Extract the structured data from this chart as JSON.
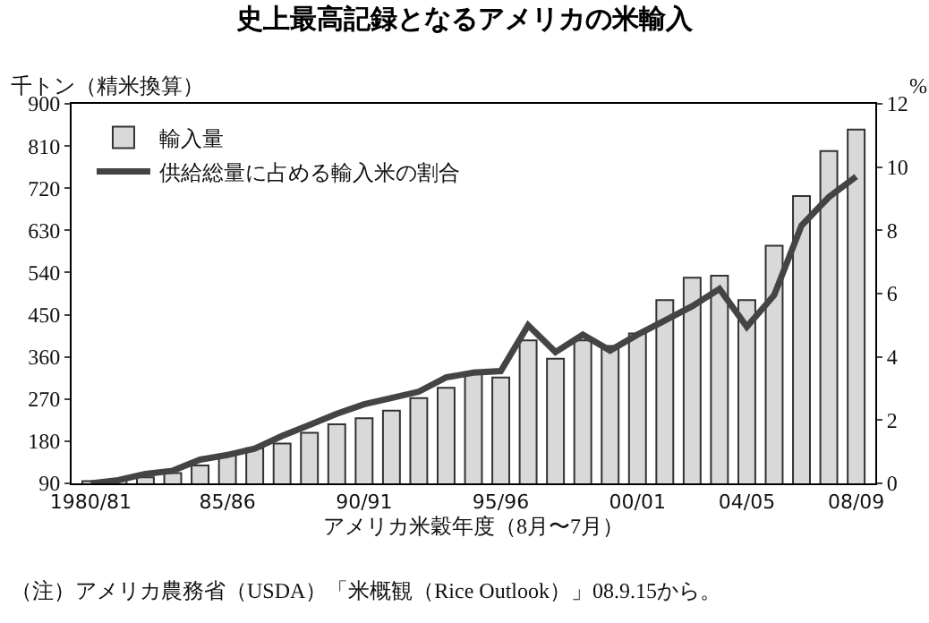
{
  "chart_data": {
    "type": "bar",
    "title": "史上最高記録となるアメリカの米輸入",
    "xlabel": "アメリカ米穀年度（8月〜7月）",
    "ylabel": "千トン（精米換算）",
    "y2label": "%",
    "categories": [
      "1980/81",
      null,
      null,
      null,
      null,
      "85/86",
      null,
      null,
      null,
      null,
      "90/91",
      null,
      null,
      null,
      null,
      "95/96",
      null,
      null,
      null,
      null,
      "00/01",
      null,
      null,
      null,
      "04/05",
      null,
      null,
      null,
      "08/09"
    ],
    "series": [
      {
        "name": "輸入量",
        "color": "#d9d9d9",
        "values": [
          95,
          97,
          103,
          112,
          128,
          149,
          165,
          175,
          198,
          216,
          229,
          245,
          272,
          294,
          323,
          316,
          395,
          356,
          395,
          383,
          410,
          481,
          529,
          533,
          481,
          597,
          703,
          799,
          845
        ]
      },
      {
        "name": "供給総量に占める輸入米の割合",
        "type": "line",
        "axis": "y2",
        "color": "#444444",
        "values": [
          0.0,
          0.1,
          0.3,
          0.4,
          0.75,
          0.9,
          1.1,
          1.5,
          1.85,
          2.2,
          2.5,
          2.7,
          2.9,
          3.35,
          3.5,
          3.55,
          5.0,
          4.15,
          4.7,
          4.2,
          4.7,
          5.15,
          5.6,
          6.15,
          4.95,
          5.95,
          8.15,
          9.05,
          9.7
        ]
      }
    ],
    "ylim": [
      90,
      900
    ],
    "yticks": [
      90,
      180,
      270,
      360,
      450,
      540,
      630,
      720,
      810,
      900
    ],
    "y2lim": [
      0,
      12
    ],
    "y2ticks": [
      0,
      2,
      4,
      6,
      8,
      10,
      12
    ],
    "legend": "top left",
    "grid": false,
    "marker": "none",
    "annotations": [
      "（注）アメリカ農務省（USDA）「米概観（Rice Outlook）」08.9.15から。"
    ]
  }
}
